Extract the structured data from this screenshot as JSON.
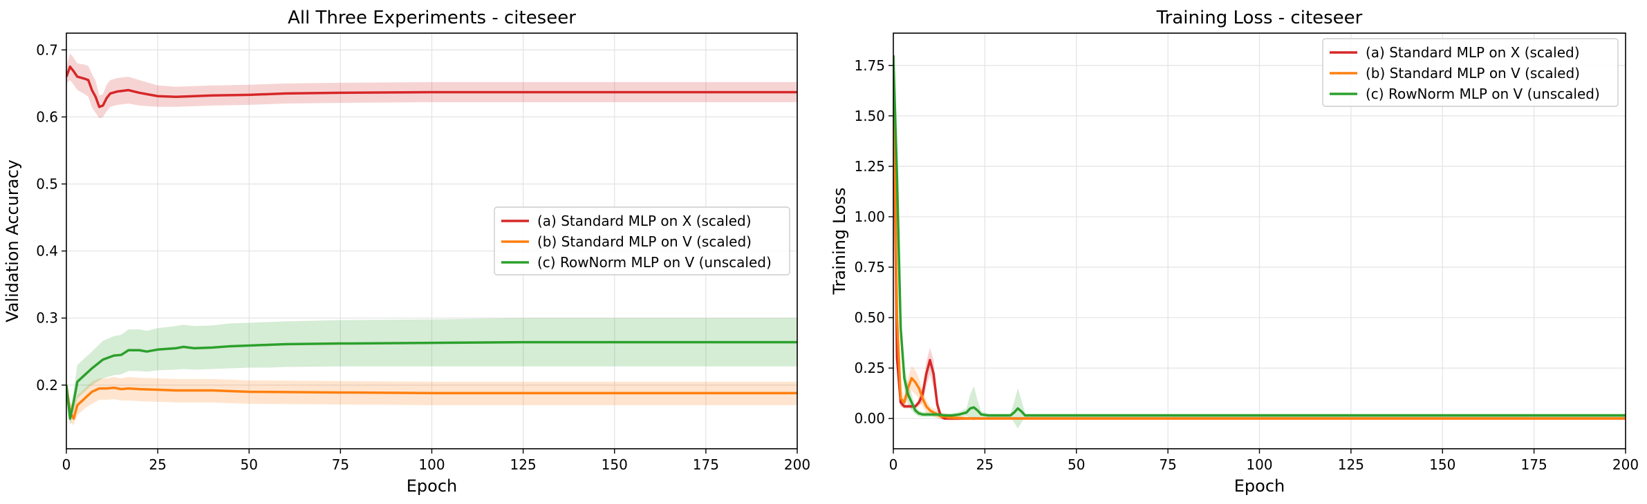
{
  "chart_data": [
    {
      "type": "line",
      "title": "All Three Experiments - citeseer",
      "xlabel": "Epoch",
      "ylabel": "Validation Accuracy",
      "xlim": [
        0,
        200
      ],
      "ylim": [
        0.105,
        0.725
      ],
      "xticks": [
        0,
        25,
        50,
        75,
        100,
        125,
        150,
        175,
        200
      ],
      "yticks": [
        0.2,
        0.3,
        0.4,
        0.5,
        0.6,
        0.7
      ],
      "grid": true,
      "legend_position": "center-right",
      "series": [
        {
          "name": "(a) Standard MLP on X (scaled)",
          "color": "#d62728",
          "x": [
            0,
            1,
            2,
            3,
            5,
            6,
            7,
            8,
            9,
            10,
            11,
            12,
            14,
            17,
            20,
            25,
            30,
            40,
            50,
            60,
            75,
            100,
            125,
            150,
            175,
            200
          ],
          "y": [
            0.66,
            0.675,
            0.668,
            0.66,
            0.657,
            0.655,
            0.64,
            0.63,
            0.615,
            0.617,
            0.628,
            0.635,
            0.638,
            0.64,
            0.636,
            0.631,
            0.63,
            0.632,
            0.633,
            0.635,
            0.636,
            0.637,
            0.637,
            0.637,
            0.637,
            0.637
          ],
          "lower": [
            0.65,
            0.655,
            0.648,
            0.64,
            0.634,
            0.63,
            0.614,
            0.606,
            0.598,
            0.6,
            0.608,
            0.615,
            0.618,
            0.62,
            0.617,
            0.615,
            0.615,
            0.617,
            0.618,
            0.62,
            0.621,
            0.622,
            0.622,
            0.622,
            0.622,
            0.622
          ],
          "upper": [
            0.675,
            0.695,
            0.688,
            0.68,
            0.678,
            0.676,
            0.664,
            0.654,
            0.632,
            0.634,
            0.648,
            0.655,
            0.658,
            0.66,
            0.655,
            0.647,
            0.645,
            0.647,
            0.648,
            0.65,
            0.651,
            0.652,
            0.652,
            0.652,
            0.652,
            0.652
          ]
        },
        {
          "name": "(b) Standard MLP on V (scaled)",
          "color": "#ff7f0e",
          "x": [
            0,
            1,
            2,
            3,
            5,
            7,
            9,
            11,
            13,
            15,
            17,
            20,
            25,
            30,
            40,
            50,
            75,
            100,
            125,
            150,
            175,
            200
          ],
          "y": [
            0.2,
            0.16,
            0.15,
            0.17,
            0.18,
            0.19,
            0.195,
            0.195,
            0.196,
            0.194,
            0.195,
            0.194,
            0.193,
            0.192,
            0.192,
            0.19,
            0.189,
            0.188,
            0.188,
            0.188,
            0.188,
            0.188
          ],
          "lower": [
            0.19,
            0.145,
            0.14,
            0.155,
            0.165,
            0.172,
            0.178,
            0.178,
            0.179,
            0.177,
            0.177,
            0.176,
            0.175,
            0.174,
            0.174,
            0.172,
            0.171,
            0.17,
            0.17,
            0.17,
            0.17,
            0.17
          ],
          "upper": [
            0.21,
            0.175,
            0.165,
            0.185,
            0.195,
            0.205,
            0.21,
            0.21,
            0.212,
            0.21,
            0.212,
            0.211,
            0.21,
            0.209,
            0.209,
            0.207,
            0.206,
            0.205,
            0.205,
            0.205,
            0.205,
            0.205
          ]
        },
        {
          "name": "(c) RowNorm MLP on V (unscaled)",
          "color": "#2ca02c",
          "x": [
            0,
            1,
            2,
            3,
            5,
            7,
            10,
            13,
            15,
            17,
            20,
            22,
            25,
            30,
            32,
            35,
            40,
            45,
            50,
            55,
            60,
            75,
            100,
            125,
            150,
            175,
            200
          ],
          "y": [
            0.2,
            0.15,
            0.175,
            0.205,
            0.215,
            0.225,
            0.238,
            0.244,
            0.245,
            0.252,
            0.252,
            0.25,
            0.253,
            0.255,
            0.257,
            0.255,
            0.256,
            0.258,
            0.259,
            0.26,
            0.261,
            0.262,
            0.263,
            0.264,
            0.264,
            0.264,
            0.264
          ],
          "lower": [
            0.19,
            0.14,
            0.16,
            0.18,
            0.19,
            0.2,
            0.21,
            0.215,
            0.216,
            0.221,
            0.221,
            0.22,
            0.222,
            0.223,
            0.224,
            0.223,
            0.224,
            0.225,
            0.226,
            0.226,
            0.227,
            0.228,
            0.228,
            0.228,
            0.228,
            0.228,
            0.228
          ],
          "upper": [
            0.21,
            0.16,
            0.19,
            0.23,
            0.24,
            0.25,
            0.266,
            0.273,
            0.275,
            0.283,
            0.283,
            0.281,
            0.285,
            0.288,
            0.29,
            0.288,
            0.289,
            0.292,
            0.293,
            0.294,
            0.295,
            0.297,
            0.298,
            0.3,
            0.3,
            0.3,
            0.3
          ]
        }
      ]
    },
    {
      "type": "line",
      "title": "Training Loss - citeseer",
      "xlabel": "Epoch",
      "ylabel": "Training Loss",
      "xlim": [
        0,
        200
      ],
      "ylim": [
        -0.15,
        1.91
      ],
      "xticks": [
        0,
        25,
        50,
        75,
        100,
        125,
        150,
        175,
        200
      ],
      "yticks": [
        0.0,
        0.25,
        0.5,
        0.75,
        1.0,
        1.25,
        1.5,
        1.75
      ],
      "grid": true,
      "legend_position": "top-right",
      "series": [
        {
          "name": "(a) Standard MLP on X (scaled)",
          "color": "#d62728",
          "x": [
            0,
            1,
            2,
            3,
            4,
            5,
            6,
            7,
            8,
            9,
            10,
            11,
            12,
            13,
            14,
            15,
            20,
            25,
            30,
            200
          ],
          "y": [
            1.79,
            0.3,
            0.08,
            0.06,
            0.06,
            0.06,
            0.06,
            0.08,
            0.12,
            0.22,
            0.29,
            0.22,
            0.07,
            0.01,
            0.0,
            0.0,
            0.0,
            0.0,
            0.0,
            0.0
          ],
          "lower": [
            1.79,
            0.25,
            0.06,
            0.05,
            0.05,
            0.05,
            0.05,
            0.06,
            0.08,
            0.16,
            0.22,
            0.15,
            0.04,
            0.0,
            0.0,
            0.0,
            0.0,
            0.0,
            0.0,
            0.0
          ],
          "upper": [
            1.79,
            0.35,
            0.1,
            0.07,
            0.07,
            0.07,
            0.07,
            0.1,
            0.16,
            0.28,
            0.35,
            0.29,
            0.1,
            0.02,
            0.0,
            0.0,
            0.0,
            0.0,
            0.0,
            0.0
          ],
          "band": false
        },
        {
          "name": "(b) Standard MLP on V (scaled)",
          "color": "#ff7f0e",
          "x": [
            0,
            1,
            2,
            3,
            4,
            5,
            6,
            7,
            8,
            9,
            10,
            11,
            12,
            13,
            14,
            15,
            17,
            20,
            25,
            200
          ],
          "y": [
            1.8,
            0.5,
            0.1,
            0.08,
            0.15,
            0.2,
            0.18,
            0.15,
            0.1,
            0.06,
            0.04,
            0.03,
            0.02,
            0.01,
            0.01,
            0.005,
            0.003,
            0.0,
            0.0,
            0.0
          ],
          "lower": [
            1.8,
            0.45,
            0.06,
            0.05,
            0.1,
            0.14,
            0.12,
            0.1,
            0.06,
            0.03,
            0.02,
            0.01,
            0.0,
            -0.005,
            -0.008,
            -0.01,
            -0.01,
            -0.008,
            -0.005,
            -0.005
          ],
          "upper": [
            1.8,
            0.55,
            0.14,
            0.11,
            0.2,
            0.26,
            0.24,
            0.2,
            0.14,
            0.09,
            0.06,
            0.05,
            0.04,
            0.025,
            0.028,
            0.02,
            0.016,
            0.008,
            0.005,
            0.005
          ]
        },
        {
          "name": "(c) RowNorm MLP on V (unscaled)",
          "color": "#2ca02c",
          "x": [
            0,
            1,
            2,
            3,
            4,
            5,
            6,
            7,
            8,
            10,
            12,
            14,
            16,
            18,
            20,
            21,
            22,
            23,
            24,
            26,
            30,
            32,
            33,
            34,
            35,
            36,
            38,
            45,
            60,
            100,
            150,
            200
          ],
          "y": [
            1.8,
            1.2,
            0.45,
            0.2,
            0.12,
            0.08,
            0.04,
            0.025,
            0.02,
            0.02,
            0.02,
            0.015,
            0.015,
            0.02,
            0.03,
            0.05,
            0.055,
            0.04,
            0.02,
            0.015,
            0.015,
            0.015,
            0.03,
            0.05,
            0.035,
            0.015,
            0.015,
            0.015,
            0.015,
            0.015,
            0.015,
            0.015
          ],
          "lower": [
            1.8,
            1.1,
            0.38,
            0.14,
            0.07,
            0.04,
            0.02,
            0.01,
            0.008,
            0.008,
            0.008,
            0.005,
            0.005,
            0.008,
            0.012,
            0.0,
            -0.01,
            0.0,
            0.008,
            0.005,
            0.005,
            0.005,
            -0.02,
            -0.05,
            -0.02,
            0.005,
            0.005,
            0.005,
            0.005,
            0.005,
            0.005,
            0.005
          ],
          "upper": [
            1.8,
            1.3,
            0.52,
            0.26,
            0.17,
            0.12,
            0.06,
            0.04,
            0.032,
            0.032,
            0.032,
            0.025,
            0.025,
            0.032,
            0.05,
            0.12,
            0.16,
            0.09,
            0.035,
            0.025,
            0.025,
            0.025,
            0.08,
            0.15,
            0.09,
            0.025,
            0.025,
            0.025,
            0.025,
            0.025,
            0.025,
            0.025
          ]
        }
      ]
    }
  ]
}
